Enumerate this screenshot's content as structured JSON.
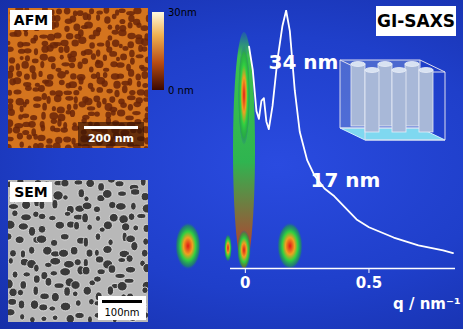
{
  "chart_data": {
    "type": "line",
    "title": "GI-SAXS",
    "x_label": "q / nm⁻¹",
    "x": [
      0.015,
      0.03,
      0.045,
      0.055,
      0.065,
      0.075,
      0.085,
      0.095,
      0.11,
      0.13,
      0.15,
      0.165,
      0.18,
      0.2,
      0.22,
      0.25,
      0.28,
      0.32,
      0.36,
      0.4,
      0.45,
      0.5,
      0.6,
      0.7,
      0.8,
      0.84
    ],
    "values": [
      86,
      77,
      61,
      58,
      65,
      66,
      57,
      54,
      63,
      81,
      94,
      100,
      92,
      69,
      53,
      42,
      36,
      31,
      28,
      24,
      19,
      16,
      12,
      9,
      7,
      6
    ],
    "color": "#ffffff",
    "xlim": [
      -0.06,
      0.85
    ],
    "ylim": [
      0,
      100
    ],
    "xticks": [
      0,
      0.5
    ],
    "tick_labels": "x",
    "annotations": [
      {
        "text": "34 nm",
        "x": 0.235,
        "y": 80
      },
      {
        "text": "17 nm",
        "x": 0.405,
        "y": 34
      }
    ]
  },
  "panels": [
    {
      "label": "AFM",
      "scale_bar": "200 nm",
      "colorbar": {
        "range": [
          0,
          30
        ],
        "ticks": [
          {
            "value": 0,
            "label": "0 nm"
          },
          {
            "value": 30,
            "label": "30nm"
          }
        ]
      }
    },
    {
      "label": "SEM",
      "scale_bar": "100nm"
    }
  ]
}
